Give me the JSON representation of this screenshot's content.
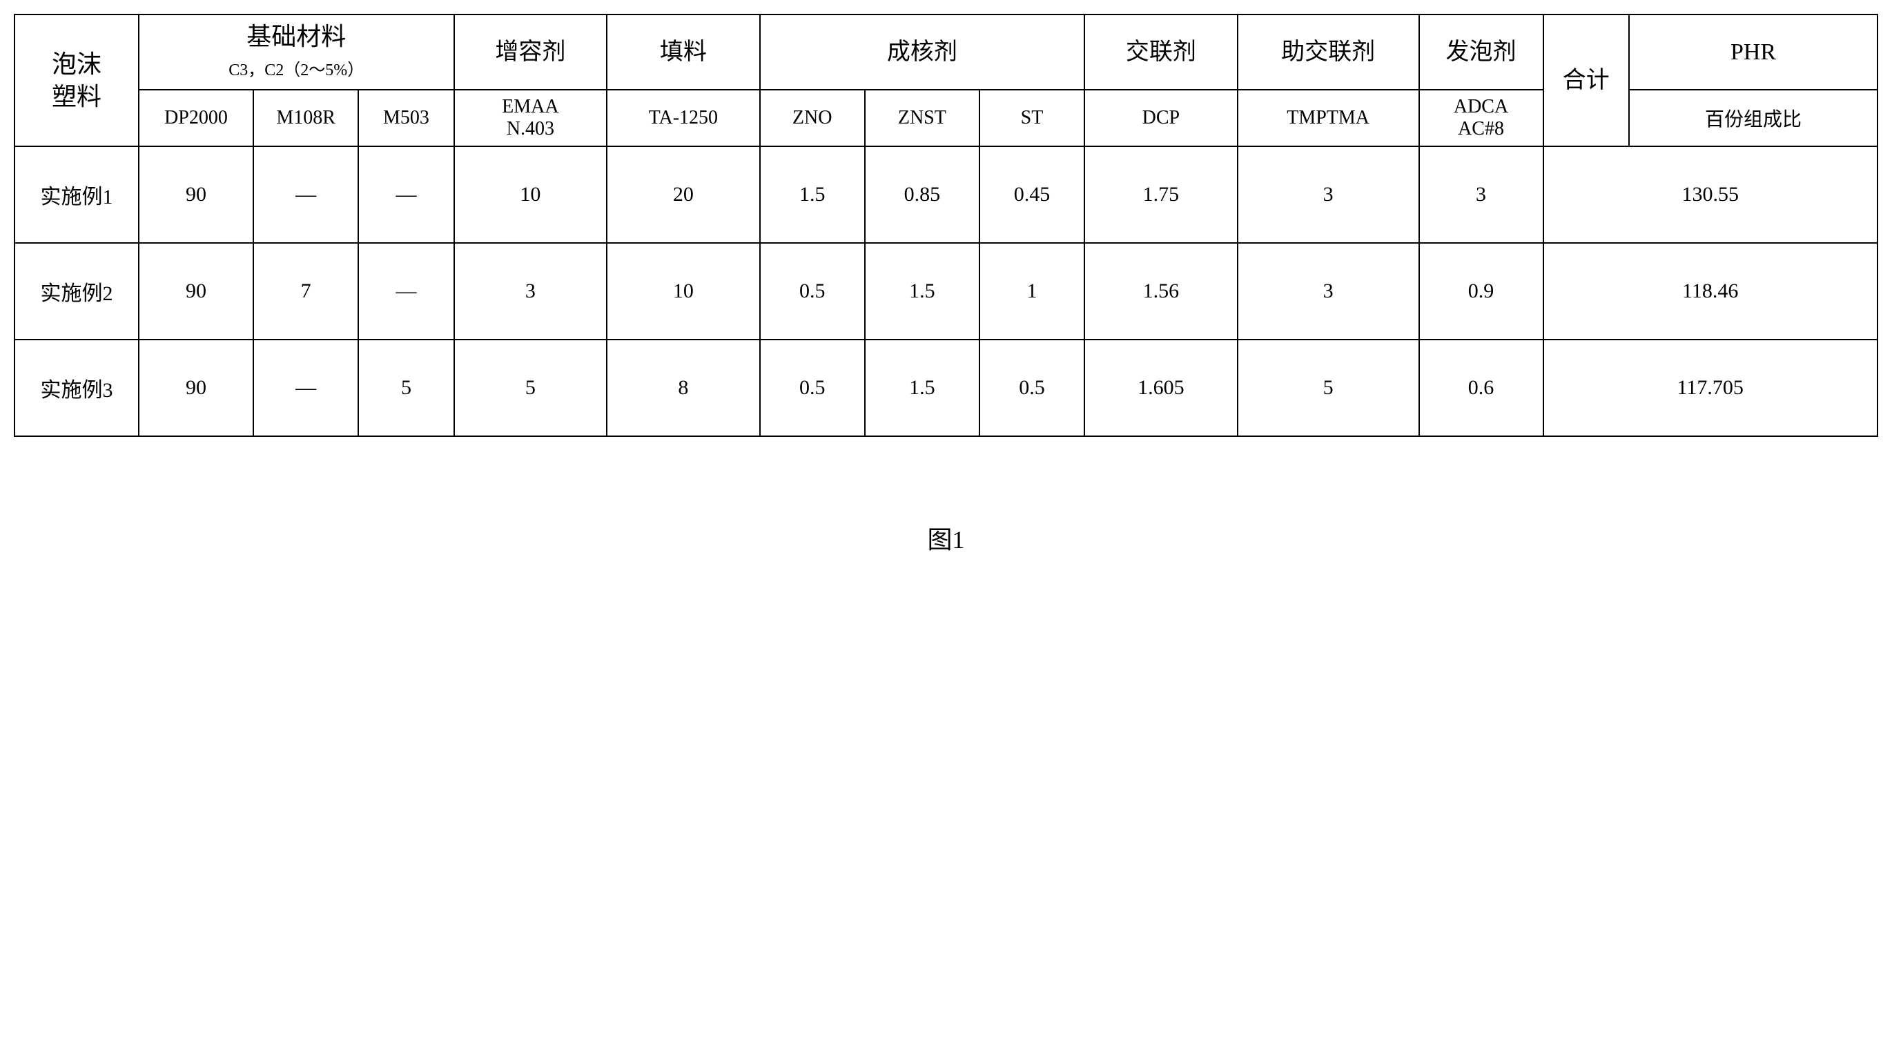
{
  "table": {
    "header": {
      "row_label_line1": "泡沫",
      "row_label_line2": "塑料",
      "base_material_title": "基础材料",
      "base_material_sub": "C3，C2（2～5%）",
      "compatibilizer": "增容剂",
      "filler": "填料",
      "nucleating_agent": "成核剂",
      "crosslinker": "交联剂",
      "co_crosslinker": "助交联剂",
      "foaming_agent": "发泡剂",
      "total": "合计",
      "phr": "PHR",
      "sub": {
        "dp2000": "DP2000",
        "m108r": "M108R",
        "m503": "M503",
        "emaa_l1": "EMAA",
        "emaa_l2": "N.403",
        "ta1250": "TA-1250",
        "zno": "ZNO",
        "znst": "ZNST",
        "st": "ST",
        "dcp": "DCP",
        "tmptma": "TMPTMA",
        "adca_l1": "ADCA",
        "adca_l2": "AC#8",
        "percent_composition": "百份组成比"
      }
    },
    "rows": [
      {
        "label": "实施例1",
        "dp2000": "90",
        "m108r": "—",
        "m503": "—",
        "emaa": "10",
        "ta1250": "20",
        "zno": "1.5",
        "znst": "0.85",
        "st": "0.45",
        "dcp": "1.75",
        "tmptma": "3",
        "adca": "3",
        "total": "130.55"
      },
      {
        "label": "实施例2",
        "dp2000": "90",
        "m108r": "7",
        "m503": "—",
        "emaa": "3",
        "ta1250": "10",
        "zno": "0.5",
        "znst": "1.5",
        "st": "1",
        "dcp": "1.56",
        "tmptma": "3",
        "adca": "0.9",
        "total": "118.46"
      },
      {
        "label": "实施例3",
        "dp2000": "90",
        "m108r": "—",
        "m503": "5",
        "emaa": "5",
        "ta1250": "8",
        "zno": "0.5",
        "znst": "1.5",
        "st": "0.5",
        "dcp": "1.605",
        "tmptma": "5",
        "adca": "0.6",
        "total": "117.705"
      }
    ],
    "caption": "图1"
  },
  "styling": {
    "border_color": "#000000",
    "border_width": 2,
    "background_color": "#ffffff",
    "text_color": "#000000",
    "header_fontsize_main": 36,
    "header_fontsize_sub": 28,
    "data_fontsize": 30,
    "caption_fontsize": 36,
    "font_family": "SimSun"
  }
}
